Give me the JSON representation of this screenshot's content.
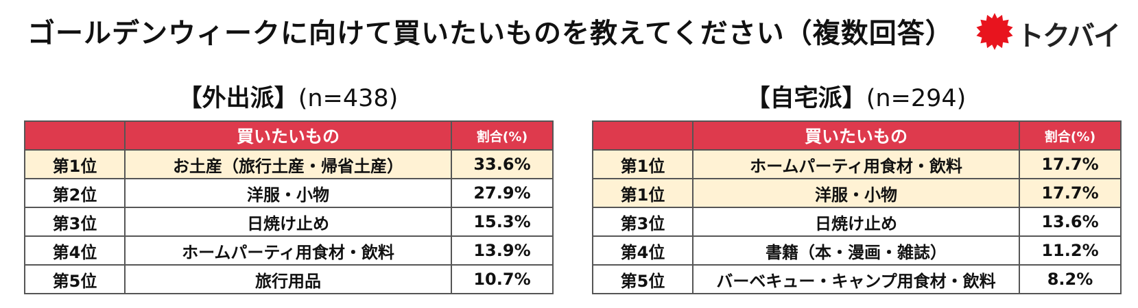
{
  "title": "ゴールデンウィークに向けて買いたいものを教えてください（複数回答）",
  "logo": {
    "text": "トクバイ",
    "icon": "red-sunburst-icon",
    "color": "#e8141e"
  },
  "colors": {
    "header_bg": "#de3a4d",
    "highlight_bg": "#fff2d4",
    "border": "#555555"
  },
  "tables": [
    {
      "heading": "【外出派】",
      "sample_size": "(n=438)",
      "columns": {
        "rank": "",
        "item": "買いたいもの",
        "percent": "割合(%)"
      },
      "rows": [
        {
          "rank": "第1位",
          "item": "お土産（旅行土産・帰省土産）",
          "percent": "33.6%"
        },
        {
          "rank": "第2位",
          "item": "洋服・小物",
          "percent": "27.9%"
        },
        {
          "rank": "第3位",
          "item": "日焼け止め",
          "percent": "15.3%"
        },
        {
          "rank": "第4位",
          "item": "ホームパーティ用食材・飲料",
          "percent": "13.9%"
        },
        {
          "rank": "第5位",
          "item": "旅行用品",
          "percent": "10.7%"
        }
      ]
    },
    {
      "heading": "【自宅派】",
      "sample_size": "(n=294)",
      "columns": {
        "rank": "",
        "item": "買いたいもの",
        "percent": "割合(%)"
      },
      "rows": [
        {
          "rank": "第1位",
          "item": "ホームパーティ用食材・飲料",
          "percent": "17.7%"
        },
        {
          "rank": "第1位",
          "item": "洋服・小物",
          "percent": "17.7%"
        },
        {
          "rank": "第3位",
          "item": "日焼け止め",
          "percent": "13.6%"
        },
        {
          "rank": "第4位",
          "item": "書籍（本・漫画・雑誌）",
          "percent": "11.2%"
        },
        {
          "rank": "第5位",
          "item": "バーベキュー・キャンプ用食材・飲料",
          "percent": "8.2%"
        }
      ]
    }
  ]
}
